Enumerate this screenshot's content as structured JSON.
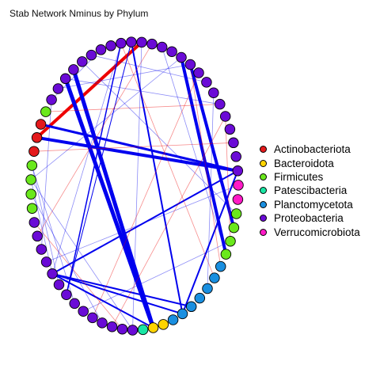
{
  "title": "Stab Network Nminus by Phylum",
  "legend": [
    {
      "name": "Actinobacteriota",
      "color": "#e41a1c"
    },
    {
      "name": "Bacteroidota",
      "color": "#ffd400"
    },
    {
      "name": "Firmicutes",
      "color": "#6ae81c"
    },
    {
      "name": "Patescibacteria",
      "color": "#19e6a4"
    },
    {
      "name": "Planctomycetota",
      "color": "#1a8fe0"
    },
    {
      "name": "Proteobacteria",
      "color": "#6a0bd6"
    },
    {
      "name": "Verrucomicrobiota",
      "color": "#ff1ac6"
    }
  ],
  "chart_data": {
    "type": "network",
    "layout": "circle",
    "node_phyla": [
      "Proteobacteria",
      "Proteobacteria",
      "Proteobacteria",
      "Proteobacteria",
      "Proteobacteria",
      "Proteobacteria",
      "Proteobacteria",
      "Proteobacteria",
      "Proteobacteria",
      "Proteobacteria",
      "Proteobacteria",
      "Proteobacteria",
      "Proteobacteria",
      "Proteobacteria",
      "Proteobacteria",
      "Proteobacteria",
      "Proteobacteria",
      "Proteobacteria",
      "Proteobacteria",
      "Proteobacteria",
      "Verrucomicrobiota",
      "Verrucomicrobiota",
      "Firmicutes",
      "Firmicutes",
      "Firmicutes",
      "Firmicutes",
      "Planctomycetota",
      "Planctomycetota",
      "Planctomycetota",
      "Planctomycetota",
      "Planctomycetota",
      "Planctomycetota",
      "Planctomycetota",
      "Bacteroidota",
      "Bacteroidota",
      "Patescibacteria",
      "Proteobacteria",
      "Proteobacteria",
      "Proteobacteria",
      "Proteobacteria",
      "Proteobacteria",
      "Proteobacteria",
      "Proteobacteria",
      "Proteobacteria",
      "Proteobacteria",
      "Proteobacteria",
      "Proteobacteria",
      "Proteobacteria",
      "Proteobacteria",
      "Proteobacteria",
      "Firmicutes",
      "Firmicutes",
      "Firmicutes",
      "Firmicutes",
      "Actinobacteriota",
      "Actinobacteriota",
      "Actinobacteriota",
      "Firmicutes",
      "Proteobacteria",
      "Proteobacteria",
      "Proteobacteria",
      "Proteobacteria",
      "Proteobacteria"
    ],
    "edges": [
      {
        "from": 55,
        "to": 5,
        "sign": "positive",
        "weight": 4
      },
      {
        "from": 61,
        "to": 34,
        "sign": "negative",
        "weight": 5
      },
      {
        "from": 60,
        "to": 34,
        "sign": "negative",
        "weight": 5
      },
      {
        "from": 10,
        "to": 23,
        "sign": "negative",
        "weight": 4
      },
      {
        "from": 9,
        "to": 25,
        "sign": "negative",
        "weight": 4
      },
      {
        "from": 55,
        "to": 19,
        "sign": "negative",
        "weight": 4
      },
      {
        "from": 56,
        "to": 19,
        "sign": "negative",
        "weight": 3
      },
      {
        "from": 45,
        "to": 34,
        "sign": "negative",
        "weight": 2
      },
      {
        "from": 45,
        "to": 19,
        "sign": "negative",
        "weight": 2
      },
      {
        "from": 45,
        "to": 30,
        "sign": "negative",
        "weight": 2
      },
      {
        "from": 45,
        "to": 31,
        "sign": "negative",
        "weight": 2
      },
      {
        "from": 19,
        "to": 31,
        "sign": "negative",
        "weight": 2
      },
      {
        "from": 4,
        "to": 31,
        "sign": "negative",
        "weight": 2
      },
      {
        "from": 3,
        "to": 43,
        "sign": "negative",
        "weight": 1.5
      },
      {
        "from": 4,
        "to": 43,
        "sign": "negative",
        "weight": 1
      },
      {
        "from": 57,
        "to": 14,
        "sign": "positive",
        "weight": 0.8
      },
      {
        "from": 54,
        "to": 17,
        "sign": "positive",
        "weight": 0.8
      },
      {
        "from": 48,
        "to": 6,
        "sign": "positive",
        "weight": 0.8
      },
      {
        "from": 3,
        "to": 27,
        "sign": "positive",
        "weight": 0.8
      },
      {
        "from": 10,
        "to": 26,
        "sign": "positive",
        "weight": 0.8
      },
      {
        "from": 15,
        "to": 24,
        "sign": "positive",
        "weight": 0.8
      },
      {
        "from": 49,
        "to": 37,
        "sign": "positive",
        "weight": 0.8
      },
      {
        "from": 59,
        "to": 10,
        "sign": "negative",
        "weight": 0.8
      },
      {
        "from": 0,
        "to": 12,
        "sign": "negative",
        "weight": 0.8
      },
      {
        "from": 44,
        "to": 53,
        "sign": "negative",
        "weight": 0.8
      },
      {
        "from": 45,
        "to": 52,
        "sign": "negative",
        "weight": 0.8
      },
      {
        "from": 9,
        "to": 52,
        "sign": "negative",
        "weight": 0.8
      },
      {
        "from": 46,
        "to": 20,
        "sign": "negative",
        "weight": 0.8
      },
      {
        "from": 47,
        "to": 58,
        "sign": "negative",
        "weight": 0.8
      },
      {
        "from": 52,
        "to": 36,
        "sign": "negative",
        "weight": 0.8
      },
      {
        "from": 51,
        "to": 39,
        "sign": "negative",
        "weight": 0.8
      },
      {
        "from": 60,
        "to": 14,
        "sign": "negative",
        "weight": 0.8
      },
      {
        "from": 62,
        "to": 22,
        "sign": "negative",
        "weight": 0.8
      },
      {
        "from": 13,
        "to": 28,
        "sign": "negative",
        "weight": 0.8
      },
      {
        "from": 7,
        "to": 25,
        "sign": "negative",
        "weight": 0.8
      },
      {
        "from": 42,
        "to": 53,
        "sign": "negative",
        "weight": 0.8
      },
      {
        "from": 45,
        "to": 3,
        "sign": "negative",
        "weight": 0.8
      },
      {
        "from": 1,
        "to": 58,
        "sign": "negative",
        "weight": 0.8
      },
      {
        "from": 41,
        "to": 24,
        "sign": "negative",
        "weight": 0.8
      },
      {
        "from": 5,
        "to": 36,
        "sign": "negative",
        "weight": 0.8
      },
      {
        "from": 38,
        "to": 15,
        "sign": "positive",
        "weight": 0.8
      },
      {
        "from": 40,
        "to": 11,
        "sign": "positive",
        "weight": 0.8
      }
    ]
  }
}
